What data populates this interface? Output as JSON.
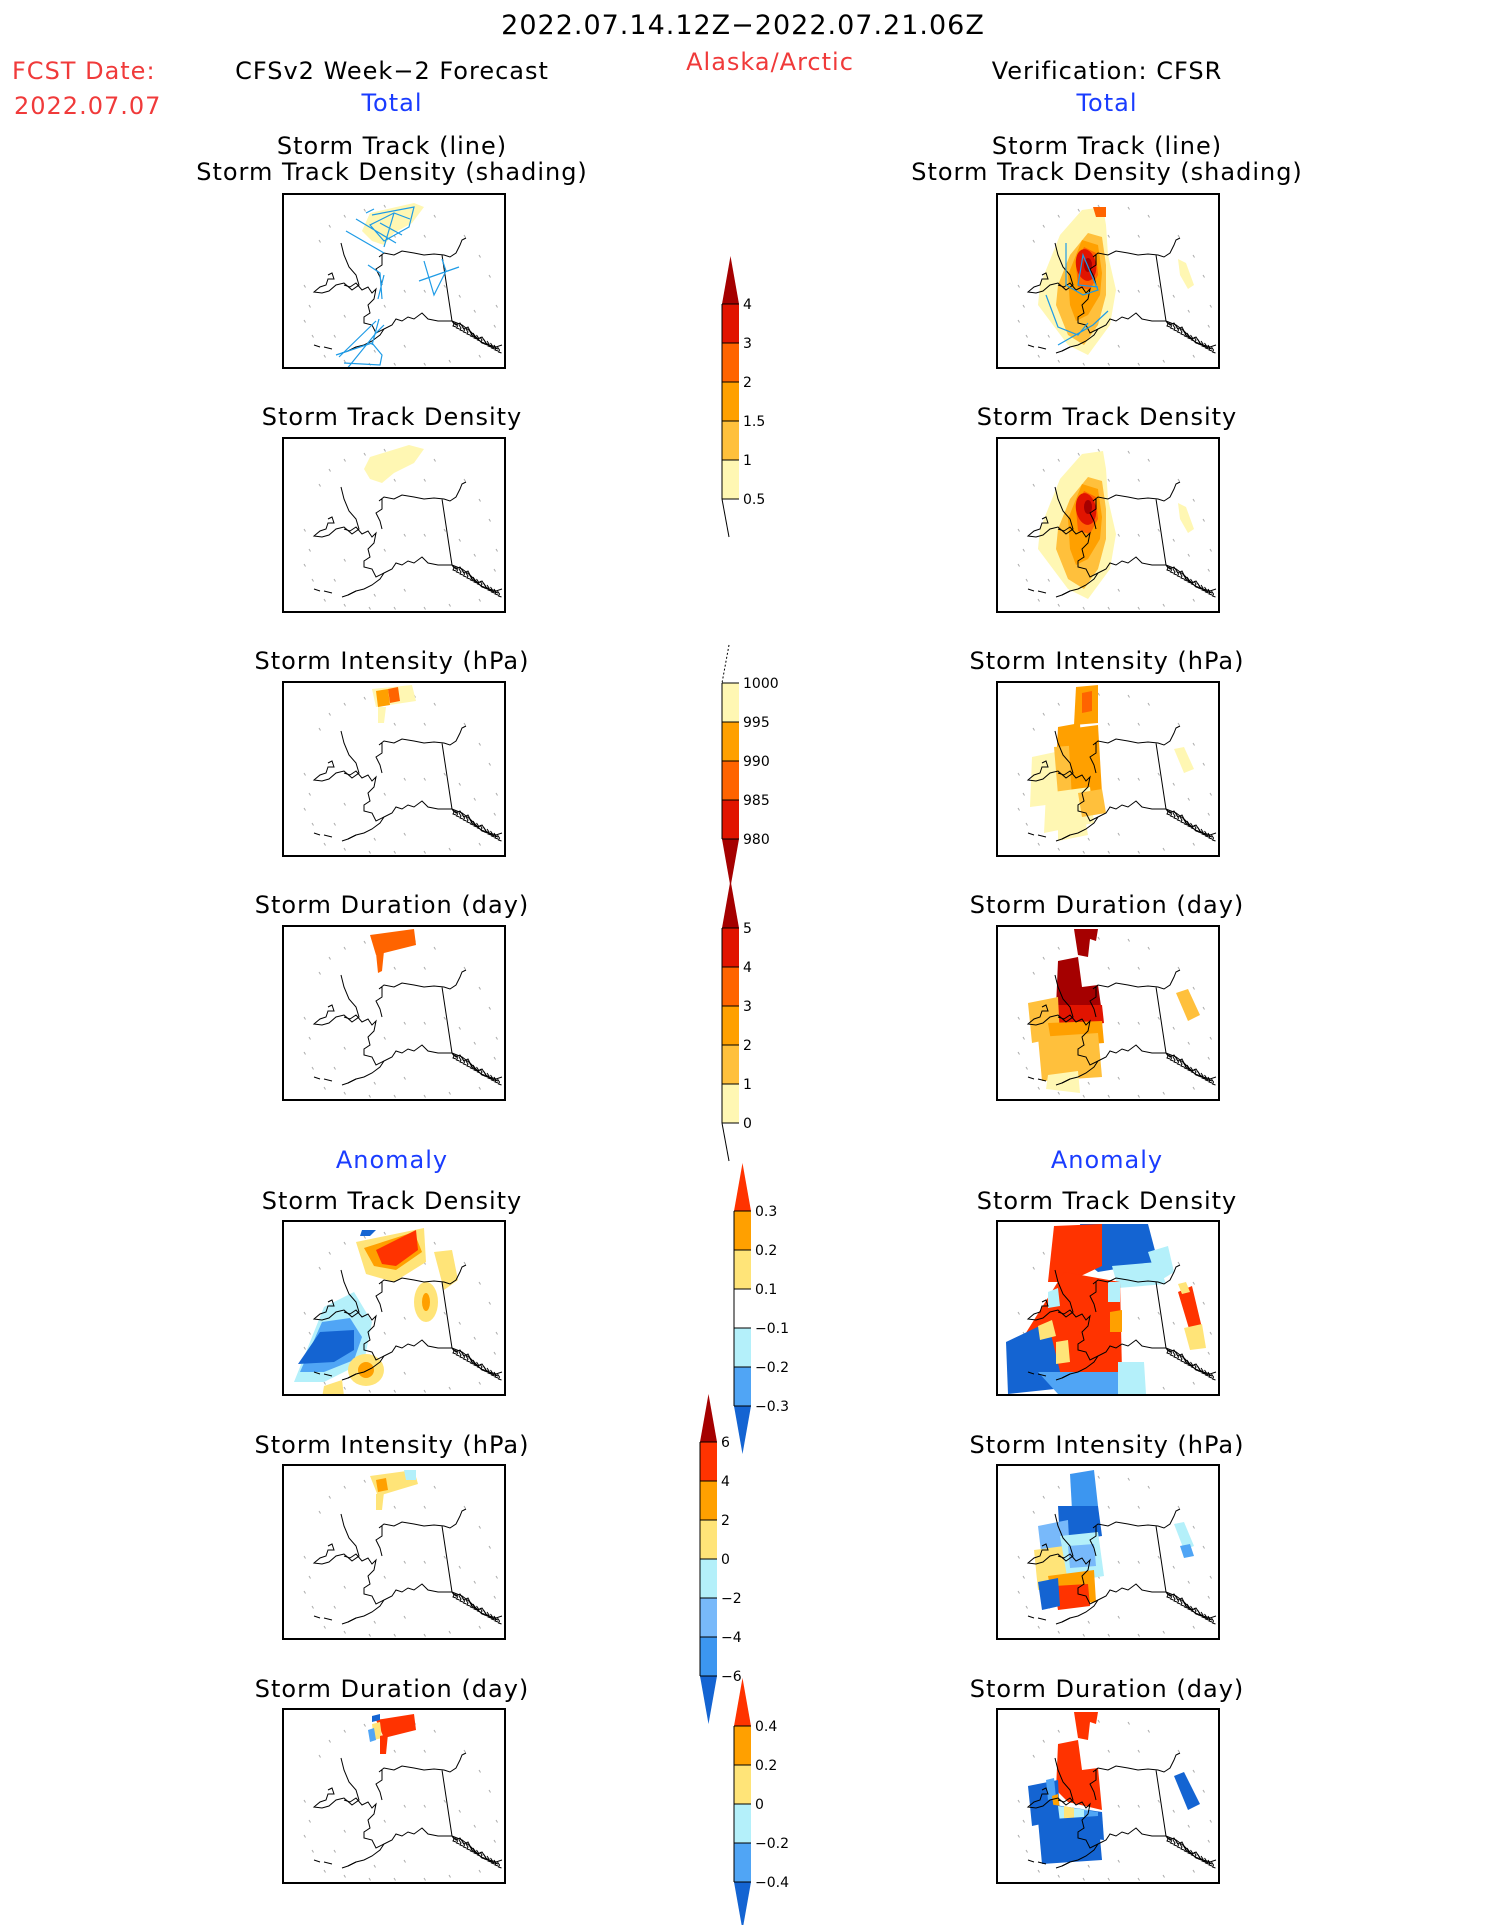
{
  "header": {
    "period": "2022.07.14.12Z−2022.07.21.06Z",
    "region": "Alaska/Arctic",
    "fcst_label": "FCST Date:",
    "fcst_date": "2022.07.07",
    "left_title": "CFSv2 Week−2 Forecast",
    "right_title": "Verification: CFSR",
    "total_label": "Total",
    "anomaly_label": "Anomaly"
  },
  "panel_titles": {
    "track_line": "Storm Track (line)",
    "track_shading": "Storm Track Density (shading)",
    "density": "Storm Track Density",
    "intensity": "Storm Intensity (hPa)",
    "duration": "Storm Duration (day)"
  },
  "colors": {
    "c1": "#fff7b3",
    "c2": "#ffc03c",
    "c3": "#ffa000",
    "c4": "#ff6400",
    "c5": "#e11400",
    "c6": "#a50000",
    "a_pos1": "#ffe478",
    "a_pos2": "#ffa000",
    "a_pos3": "#ff3300",
    "a_pos4": "#a50000",
    "a_neg1": "#b4f0fa",
    "a_neg2": "#50a5f5",
    "a_neg2b": "#78b9fa",
    "a_neg3": "#3c96f0",
    "a_neg4": "#1464d2",
    "track_line": "#1e9be6"
  },
  "chart_data": [
    {
      "type": "heatmap",
      "title": "Storm Track Density colorbar (Total)",
      "levels": [
        "0.5",
        "1",
        "1.5",
        "2",
        "3",
        "4"
      ],
      "colors": [
        "#fff7b3",
        "#ffc03c",
        "#ffa000",
        "#ff6400",
        "#e11400",
        "#a50000"
      ],
      "extend": "max"
    },
    {
      "type": "heatmap",
      "title": "Storm Intensity colorbar (hPa, Total)",
      "levels": [
        "1000",
        "995",
        "990",
        "985",
        "980"
      ],
      "colors": [
        "#fff7b3",
        "#ffa000",
        "#ff6400",
        "#e11400",
        "#a50000"
      ],
      "extend": "min"
    },
    {
      "type": "heatmap",
      "title": "Storm Duration colorbar (day, Total)",
      "levels": [
        "0",
        "1",
        "2",
        "3",
        "4",
        "5"
      ],
      "colors": [
        "#fff7b3",
        "#ffc03c",
        "#ffa000",
        "#ff6400",
        "#e11400",
        "#a50000"
      ],
      "extend": "max"
    },
    {
      "type": "heatmap",
      "title": "Storm Track Density Anomaly colorbar",
      "levels": [
        "0.3",
        "0.2",
        "0.1",
        "−0.1",
        "−0.2",
        "−0.3"
      ],
      "colors": [
        "#ff3300",
        "#ffa000",
        "#ffe478",
        "#ffffff",
        "#b4f0fa",
        "#50a5f5",
        "#1464d2"
      ],
      "extend": "both"
    },
    {
      "type": "heatmap",
      "title": "Storm Intensity Anomaly colorbar (hPa)",
      "levels": [
        "6",
        "4",
        "2",
        "0",
        "−2",
        "−4",
        "−6"
      ],
      "colors": [
        "#a50000",
        "#ff3300",
        "#ffa000",
        "#ffe478",
        "#b4f0fa",
        "#78b9fa",
        "#3c96f0",
        "#1464d2"
      ],
      "extend": "both"
    },
    {
      "type": "heatmap",
      "title": "Storm Duration Anomaly colorbar (day)",
      "levels": [
        "0.4",
        "0.2",
        "0",
        "−0.2",
        "−0.4"
      ],
      "colors": [
        "#ff3300",
        "#ffa000",
        "#ffe478",
        "#b4f0fa",
        "#50a5f5",
        "#1464d2"
      ],
      "extend": "both"
    }
  ]
}
